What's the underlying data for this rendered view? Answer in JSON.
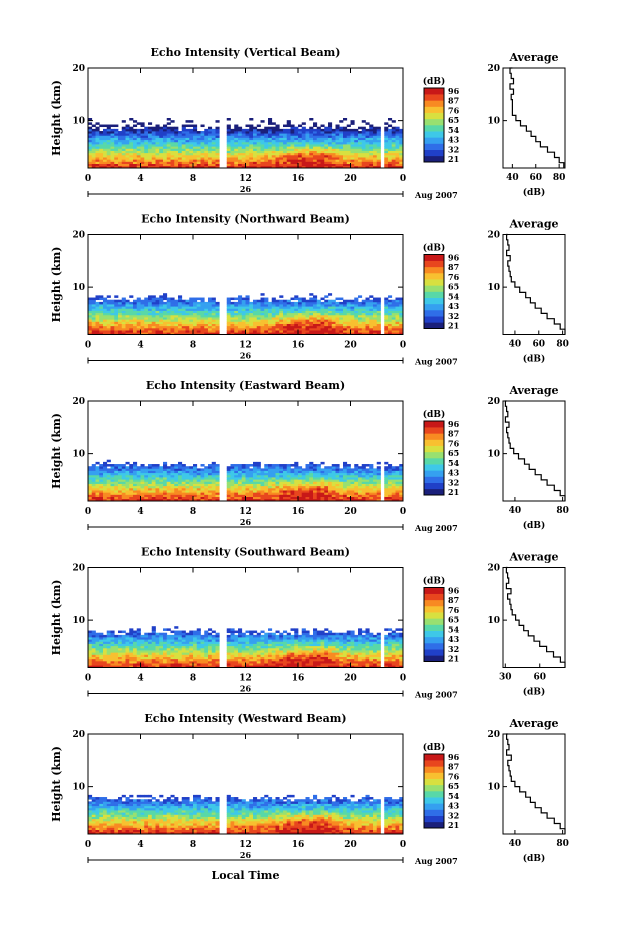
{
  "figure": {
    "date_label": "26",
    "month_year": "Aug 2007",
    "xlabel": "Local Time",
    "colorbar_unit": "(dB)",
    "average_title": "Average",
    "average_unit": "(dB)"
  },
  "colormap": [
    "#1a1f7a",
    "#2040c8",
    "#2f6ee8",
    "#35a0f0",
    "#3ec8e8",
    "#58d8a8",
    "#98e070",
    "#d8e040",
    "#f8c030",
    "#f88a22",
    "#e8461e",
    "#c81818"
  ],
  "chart_data": [
    {
      "type": "heatmap",
      "title": "Echo Intensity (Vertical Beam)",
      "ylabel": "Height (km)",
      "x_ticks": [
        "0",
        "4",
        "8",
        "12",
        "16",
        "20",
        "0"
      ],
      "y_ticks": [
        "10",
        "20"
      ],
      "xlim": [
        0,
        24
      ],
      "ylim": [
        1,
        20
      ],
      "colorbar_ticks": [
        "96",
        "87",
        "76",
        "65",
        "54",
        "43",
        "32",
        "21"
      ],
      "average": {
        "x_ticks": [
          "40",
          "60",
          "80"
        ],
        "xlim": [
          32,
          85
        ],
        "profile": [
          [
            84,
            1
          ],
          [
            80,
            2
          ],
          [
            76,
            3
          ],
          [
            70,
            4
          ],
          [
            64,
            5
          ],
          [
            60,
            6
          ],
          [
            56,
            7
          ],
          [
            52,
            8
          ],
          [
            47,
            9
          ],
          [
            43,
            10
          ],
          [
            40,
            11
          ],
          [
            40,
            12
          ],
          [
            40,
            13
          ],
          [
            39,
            14
          ],
          [
            41,
            15
          ],
          [
            38,
            16
          ],
          [
            41,
            17
          ],
          [
            39,
            18
          ],
          [
            38,
            19
          ],
          [
            40,
            20
          ]
        ]
      }
    },
    {
      "type": "heatmap",
      "title": "Echo Intensity (Northward Beam)",
      "ylabel": "Height (km)",
      "x_ticks": [
        "0",
        "4",
        "8",
        "12",
        "16",
        "20",
        "0"
      ],
      "y_ticks": [
        "10",
        "20"
      ],
      "xlim": [
        0,
        24
      ],
      "ylim": [
        1,
        20
      ],
      "colorbar_ticks": [
        "96",
        "87",
        "76",
        "65",
        "54",
        "43",
        "32",
        "21"
      ],
      "average": {
        "x_ticks": [
          "40",
          "60",
          "80"
        ],
        "xlim": [
          30,
          82
        ],
        "profile": [
          [
            82,
            1
          ],
          [
            78,
            2
          ],
          [
            73,
            3
          ],
          [
            67,
            4
          ],
          [
            62,
            5
          ],
          [
            57,
            6
          ],
          [
            53,
            7
          ],
          [
            49,
            8
          ],
          [
            44,
            9
          ],
          [
            40,
            10
          ],
          [
            37,
            11
          ],
          [
            36,
            12
          ],
          [
            35,
            13
          ],
          [
            34,
            14
          ],
          [
            36,
            15
          ],
          [
            33,
            16
          ],
          [
            35,
            17
          ],
          [
            34,
            18
          ],
          [
            33,
            19
          ],
          [
            34,
            20
          ]
        ]
      }
    },
    {
      "type": "heatmap",
      "title": "Echo Intensity (Eastward Beam)",
      "ylabel": "Height (km)",
      "x_ticks": [
        "0",
        "4",
        "8",
        "12",
        "16",
        "20",
        "0"
      ],
      "y_ticks": [
        "10",
        "20"
      ],
      "xlim": [
        0,
        24
      ],
      "ylim": [
        1,
        20
      ],
      "colorbar_ticks": [
        "96",
        "87",
        "76",
        "65",
        "54",
        "43",
        "32",
        "21"
      ],
      "average": {
        "x_ticks": [
          "40",
          "80"
        ],
        "xlim": [
          30,
          82
        ],
        "profile": [
          [
            82,
            1
          ],
          [
            78,
            2
          ],
          [
            73,
            3
          ],
          [
            67,
            4
          ],
          [
            62,
            5
          ],
          [
            57,
            6
          ],
          [
            52,
            7
          ],
          [
            48,
            8
          ],
          [
            43,
            9
          ],
          [
            39,
            10
          ],
          [
            36,
            11
          ],
          [
            35,
            12
          ],
          [
            34,
            13
          ],
          [
            33,
            14
          ],
          [
            35,
            15
          ],
          [
            32,
            16
          ],
          [
            34,
            17
          ],
          [
            33,
            18
          ],
          [
            32,
            19
          ],
          [
            33,
            20
          ]
        ]
      }
    },
    {
      "type": "heatmap",
      "title": "Echo Intensity (Southward Beam)",
      "ylabel": "Height (km)",
      "x_ticks": [
        "0",
        "4",
        "8",
        "12",
        "16",
        "20",
        "0"
      ],
      "y_ticks": [
        "10",
        "20"
      ],
      "xlim": [
        0,
        24
      ],
      "ylim": [
        1,
        20
      ],
      "colorbar_ticks": [
        "96",
        "87",
        "76",
        "65",
        "54",
        "43",
        "32",
        "21"
      ],
      "average": {
        "x_ticks": [
          "30",
          "60"
        ],
        "xlim": [
          28,
          82
        ],
        "profile": [
          [
            82,
            1
          ],
          [
            78,
            2
          ],
          [
            72,
            3
          ],
          [
            66,
            4
          ],
          [
            60,
            5
          ],
          [
            55,
            6
          ],
          [
            50,
            7
          ],
          [
            46,
            8
          ],
          [
            42,
            9
          ],
          [
            39,
            10
          ],
          [
            36,
            11
          ],
          [
            35,
            12
          ],
          [
            34,
            13
          ],
          [
            32,
            14
          ],
          [
            35,
            15
          ],
          [
            31,
            16
          ],
          [
            33,
            17
          ],
          [
            32,
            18
          ],
          [
            31,
            19
          ],
          [
            32,
            20
          ]
        ]
      }
    },
    {
      "type": "heatmap",
      "title": "Echo Intensity (Westward Beam)",
      "ylabel": "Height (km)",
      "x_ticks": [
        "0",
        "4",
        "8",
        "12",
        "16",
        "20",
        "0"
      ],
      "y_ticks": [
        "10",
        "20"
      ],
      "xlim": [
        0,
        24
      ],
      "ylim": [
        1,
        20
      ],
      "colorbar_ticks": [
        "96",
        "87",
        "76",
        "65",
        "54",
        "43",
        "32",
        "21"
      ],
      "average": {
        "x_ticks": [
          "40",
          "80"
        ],
        "xlim": [
          30,
          82
        ],
        "profile": [
          [
            82,
            1
          ],
          [
            78,
            2
          ],
          [
            73,
            3
          ],
          [
            67,
            4
          ],
          [
            62,
            5
          ],
          [
            57,
            6
          ],
          [
            53,
            7
          ],
          [
            49,
            8
          ],
          [
            44,
            9
          ],
          [
            40,
            10
          ],
          [
            37,
            11
          ],
          [
            36,
            12
          ],
          [
            35,
            13
          ],
          [
            34,
            14
          ],
          [
            37,
            15
          ],
          [
            33,
            16
          ],
          [
            35,
            17
          ],
          [
            34,
            18
          ],
          [
            33,
            19
          ],
          [
            34,
            20
          ]
        ]
      }
    }
  ]
}
